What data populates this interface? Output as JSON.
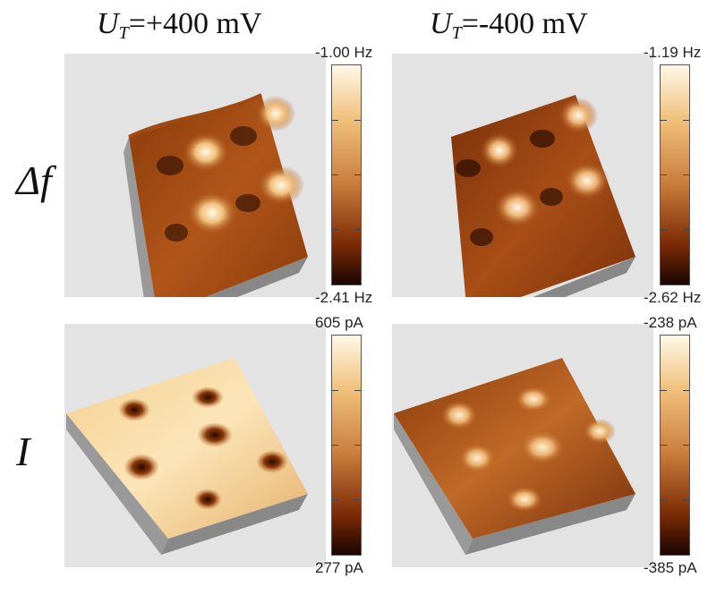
{
  "columns": [
    {
      "symbol": "U",
      "subscript": "T",
      "value": "=+400 mV"
    },
    {
      "symbol": "U",
      "subscript": "T",
      "value": "=-400 mV"
    }
  ],
  "rows": [
    {
      "label": "Δf"
    },
    {
      "label": "I"
    }
  ],
  "colorbars": [
    {
      "top": "-1.00 Hz",
      "bottom": "-2.41 Hz"
    },
    {
      "top": "-1.19 Hz",
      "bottom": "-2.62 Hz"
    },
    {
      "top": "605 pA",
      "bottom": "277 pA"
    },
    {
      "top": "-238 pA",
      "bottom": "-385 pA"
    }
  ],
  "colors": {
    "dark": "#1a0500",
    "mid": "#a04a10",
    "light": "#f0c07a",
    "bright": "#fff8e8",
    "panel_bg": "#e3e3e3"
  }
}
